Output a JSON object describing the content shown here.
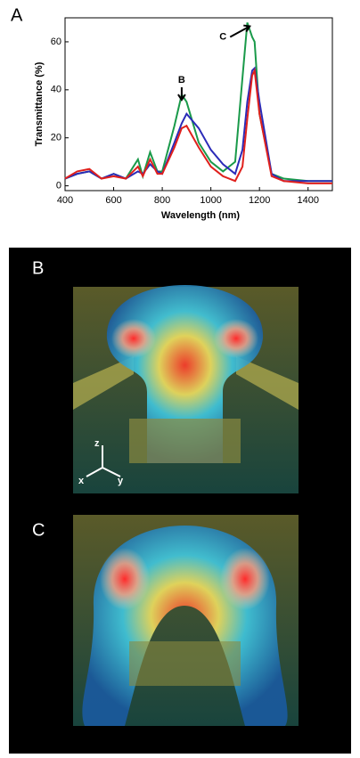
{
  "panel_labels": [
    "A",
    "B",
    "C"
  ],
  "axis_glyphs": [
    "z",
    "x",
    "y"
  ],
  "chart_data": {
    "type": "line",
    "xlabel": "Wavelength (nm)",
    "ylabel": "Transmittance (%)",
    "x": [
      400,
      450,
      500,
      550,
      600,
      650,
      700,
      720,
      750,
      780,
      800,
      850,
      880,
      900,
      950,
      1000,
      1050,
      1100,
      1130,
      1150,
      1170,
      1180,
      1200,
      1250,
      1300,
      1400,
      1500
    ],
    "series": [
      {
        "color": "#1a9a4a",
        "values": [
          3,
          5,
          6,
          3,
          5,
          3,
          11,
          4,
          14,
          6,
          6,
          25,
          38,
          35,
          18,
          10,
          6,
          10,
          45,
          68,
          62,
          60,
          30,
          5,
          3,
          2,
          2
        ]
      },
      {
        "color": "#2b2bb8",
        "values": [
          3,
          5,
          6,
          3,
          5,
          3,
          6,
          5,
          9,
          6,
          5,
          18,
          26,
          30,
          24,
          15,
          9,
          5,
          15,
          35,
          48,
          49,
          35,
          5,
          2,
          2,
          2
        ]
      },
      {
        "color": "#e0201c",
        "values": [
          3,
          6,
          7,
          3,
          4,
          3,
          8,
          4,
          11,
          5,
          5,
          16,
          24,
          25,
          16,
          8,
          4,
          2,
          8,
          28,
          46,
          48,
          30,
          4,
          2,
          1,
          1
        ]
      }
    ],
    "annotations": [
      {
        "text": "B",
        "x": 880,
        "y": 44
      },
      {
        "text": "C",
        "x": 1050,
        "y": 62
      }
    ],
    "xlim": [
      400,
      1500
    ],
    "ylim": [
      -2,
      70
    ],
    "xticks": [
      400,
      600,
      800,
      1000,
      1200,
      1400
    ],
    "yticks": [
      0,
      20,
      40,
      60
    ]
  }
}
